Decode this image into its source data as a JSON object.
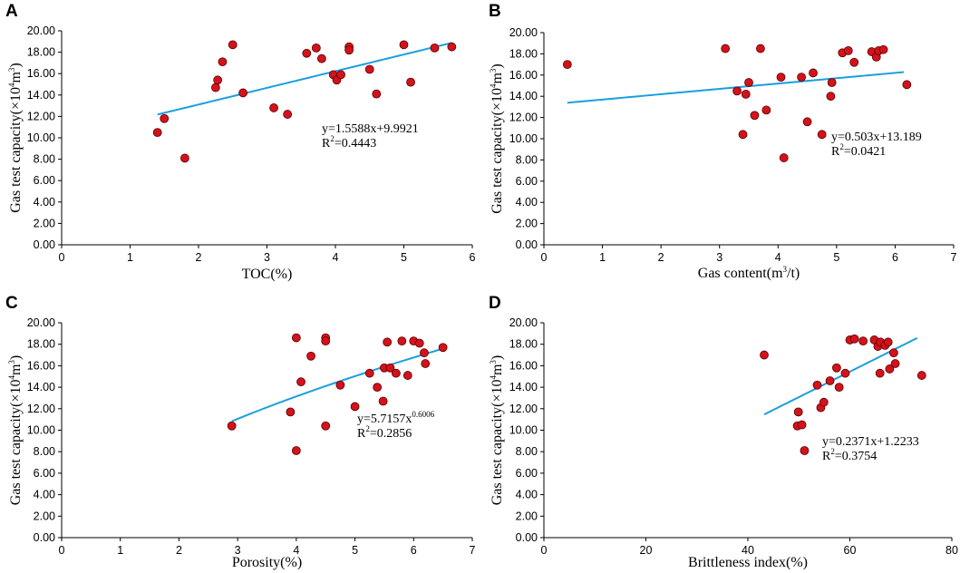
{
  "figure": {
    "panel_count": 4
  },
  "chart_data": [
    {
      "panel": "A",
      "type": "scatter",
      "xlabel": "TOC(%)",
      "ylabel": {
        "main": "Gas test capacity(×10",
        "sup1": "4",
        "mid": "m",
        "sup2": "3",
        "end": ")"
      },
      "xlim": [
        0,
        6
      ],
      "ylim": [
        0,
        20
      ],
      "xticks": [
        0,
        1,
        2,
        3,
        4,
        5,
        6
      ],
      "yticks": [
        0,
        2,
        4,
        6,
        8,
        10,
        12,
        14,
        16,
        18,
        20
      ],
      "ytick_labels": [
        "0.00",
        "2.00",
        "4.00",
        "6.00",
        "8.00",
        "10.00",
        "12.00",
        "14.00",
        "16.00",
        "18.00",
        "20.00"
      ],
      "points": [
        [
          1.4,
          10.5
        ],
        [
          1.5,
          11.8
        ],
        [
          1.8,
          8.1
        ],
        [
          2.25,
          14.7
        ],
        [
          2.28,
          15.4
        ],
        [
          2.35,
          17.1
        ],
        [
          2.5,
          18.7
        ],
        [
          2.65,
          14.2
        ],
        [
          3.1,
          12.8
        ],
        [
          3.3,
          12.2
        ],
        [
          3.58,
          17.9
        ],
        [
          3.72,
          18.4
        ],
        [
          3.8,
          17.4
        ],
        [
          3.97,
          15.9
        ],
        [
          4.02,
          15.4
        ],
        [
          4.08,
          15.9
        ],
        [
          4.2,
          18.5
        ],
        [
          4.2,
          18.2
        ],
        [
          4.5,
          16.4
        ],
        [
          4.6,
          14.1
        ],
        [
          5.0,
          18.7
        ],
        [
          5.1,
          15.2
        ],
        [
          5.45,
          18.4
        ],
        [
          5.7,
          18.5
        ]
      ],
      "fit": {
        "kind": "linear",
        "a": 1.5588,
        "b": 9.9921,
        "x_range": [
          1.4,
          5.7
        ]
      },
      "equation": {
        "line1": "y=1.5588x+9.9921",
        "r2_prefix": "R",
        "r2_sup": "2",
        "r2_value": "=0.4443"
      }
    },
    {
      "panel": "B",
      "type": "scatter",
      "xlabel": {
        "main": "Gas content(m",
        "sup": "3",
        "end": "/t)"
      },
      "ylabel": {
        "main": "Gas test capacity(×10",
        "sup1": "4",
        "mid": "m",
        "sup2": "3",
        "end": ")"
      },
      "xlim": [
        0,
        7
      ],
      "ylim": [
        0,
        20
      ],
      "xticks": [
        0,
        1,
        2,
        3,
        4,
        5,
        6,
        7
      ],
      "yticks": [
        0,
        2,
        4,
        6,
        8,
        10,
        12,
        14,
        16,
        18,
        20
      ],
      "ytick_labels": [
        "0.00",
        "2.00",
        "4.00",
        "6.00",
        "8.00",
        "10.00",
        "12.00",
        "14.00",
        "16.00",
        "18.00",
        "20.00"
      ],
      "points": [
        [
          0.4,
          17.0
        ],
        [
          3.1,
          18.5
        ],
        [
          3.3,
          14.5
        ],
        [
          3.4,
          10.4
        ],
        [
          3.45,
          14.2
        ],
        [
          3.5,
          15.3
        ],
        [
          3.6,
          12.2
        ],
        [
          3.7,
          18.5
        ],
        [
          3.8,
          12.7
        ],
        [
          4.05,
          15.8
        ],
        [
          4.1,
          8.2
        ],
        [
          4.4,
          15.8
        ],
        [
          4.5,
          11.6
        ],
        [
          4.6,
          16.2
        ],
        [
          4.75,
          10.4
        ],
        [
          4.9,
          14.0
        ],
        [
          4.92,
          15.3
        ],
        [
          5.1,
          18.1
        ],
        [
          5.2,
          18.3
        ],
        [
          5.3,
          17.2
        ],
        [
          5.6,
          18.2
        ],
        [
          5.68,
          17.7
        ],
        [
          5.72,
          18.3
        ],
        [
          5.8,
          18.4
        ],
        [
          6.2,
          15.1
        ]
      ],
      "fit": {
        "kind": "linear",
        "a": 0.503,
        "b": 13.189,
        "x_range": [
          0.4,
          6.15
        ]
      },
      "equation": {
        "line1": "y=0.503x+13.189",
        "r2_prefix": "R",
        "r2_sup": "2",
        "r2_value": "=0.0421"
      }
    },
    {
      "panel": "C",
      "type": "scatter",
      "xlabel": "Porosity(%)",
      "ylabel": {
        "main": "Gas test capacity(×10",
        "sup1": "4",
        "mid": "m",
        "sup2": "3",
        "end": ")"
      },
      "xlim": [
        0,
        7
      ],
      "ylim": [
        0,
        20
      ],
      "xticks": [
        0,
        1,
        2,
        3,
        4,
        5,
        6,
        7
      ],
      "yticks": [
        0,
        2,
        4,
        6,
        8,
        10,
        12,
        14,
        16,
        18,
        20
      ],
      "ytick_labels": [
        "0.00",
        "2.00",
        "4.00",
        "6.00",
        "8.00",
        "10.00",
        "12.00",
        "14.00",
        "16.00",
        "18.00",
        "20.00"
      ],
      "points": [
        [
          2.9,
          10.4
        ],
        [
          3.9,
          11.7
        ],
        [
          4.0,
          8.1
        ],
        [
          4.0,
          18.6
        ],
        [
          4.08,
          14.5
        ],
        [
          4.25,
          16.9
        ],
        [
          4.5,
          18.6
        ],
        [
          4.5,
          18.3
        ],
        [
          4.5,
          10.4
        ],
        [
          4.75,
          14.2
        ],
        [
          5.0,
          12.2
        ],
        [
          5.25,
          15.3
        ],
        [
          5.38,
          14.0
        ],
        [
          5.48,
          12.7
        ],
        [
          5.5,
          15.8
        ],
        [
          5.55,
          18.2
        ],
        [
          5.6,
          15.8
        ],
        [
          5.7,
          15.3
        ],
        [
          5.8,
          18.3
        ],
        [
          5.9,
          15.1
        ],
        [
          6.0,
          18.3
        ],
        [
          6.1,
          18.1
        ],
        [
          6.18,
          17.2
        ],
        [
          6.2,
          16.2
        ],
        [
          6.5,
          17.7
        ]
      ],
      "fit": {
        "kind": "power",
        "a": 5.7157,
        "b": 0.6006,
        "x_range": [
          2.9,
          6.5
        ]
      },
      "equation": {
        "line1": "y=5.7157x",
        "line1_sup": "0.6006",
        "r2_prefix": "R",
        "r2_sup": "2",
        "r2_value": "=0.2856"
      }
    },
    {
      "panel": "D",
      "type": "scatter",
      "xlabel": "Brittleness index(%)",
      "ylabel": {
        "main": "Gas test capacity(×10",
        "sup1": "4",
        "mid": "m",
        "sup2": "3",
        "end": ")"
      },
      "xlim": [
        0,
        80
      ],
      "ylim": [
        0,
        20
      ],
      "xticks": [
        0,
        20,
        40,
        60,
        80
      ],
      "yticks": [
        0,
        2,
        4,
        6,
        8,
        10,
        12,
        14,
        16,
        18,
        20
      ],
      "ytick_labels": [
        "0.00",
        "2.00",
        "4.00",
        "6.00",
        "8.00",
        "10.00",
        "12.00",
        "14.00",
        "16.00",
        "18.00",
        "20.00"
      ],
      "points": [
        [
          43.2,
          17.0
        ],
        [
          49.7,
          10.4
        ],
        [
          49.9,
          11.7
        ],
        [
          50.6,
          10.5
        ],
        [
          51.1,
          8.1
        ],
        [
          53.6,
          14.2
        ],
        [
          54.3,
          12.1
        ],
        [
          54.9,
          12.6
        ],
        [
          56.1,
          14.6
        ],
        [
          57.4,
          15.8
        ],
        [
          57.9,
          14.0
        ],
        [
          59.1,
          15.3
        ],
        [
          60.0,
          18.4
        ],
        [
          60.9,
          18.5
        ],
        [
          62.6,
          18.3
        ],
        [
          64.8,
          18.4
        ],
        [
          65.5,
          17.8
        ],
        [
          65.9,
          15.3
        ],
        [
          66.0,
          18.2
        ],
        [
          66.9,
          17.9
        ],
        [
          67.5,
          18.2
        ],
        [
          67.8,
          15.7
        ],
        [
          68.6,
          17.2
        ],
        [
          68.9,
          16.2
        ],
        [
          74.1,
          15.1
        ]
      ],
      "fit": {
        "kind": "linear",
        "a": 0.2371,
        "b": 1.2233,
        "x_range": [
          43.2,
          73.2
        ]
      },
      "equation": {
        "line1": "y=0.2371x+1.2233",
        "r2_prefix": "R",
        "r2_sup": "2",
        "r2_value": "=0.3754"
      }
    }
  ]
}
